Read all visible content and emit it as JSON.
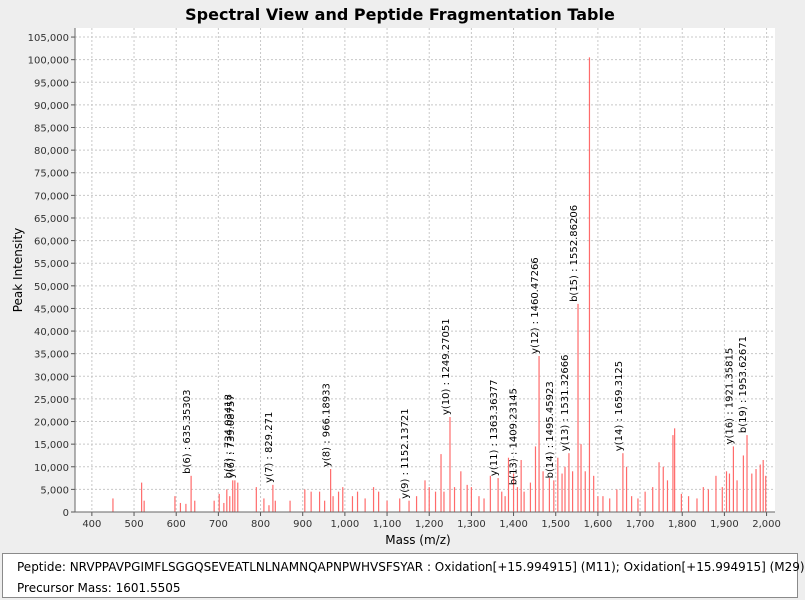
{
  "chart_data": {
    "type": "bar",
    "title": "Spectral View and Peptide Fragmentation Table",
    "xlabel": "Mass (m/z)",
    "ylabel": "Peak Intensity",
    "xlim": [
      360,
      2020
    ],
    "ylim": [
      0,
      107000
    ],
    "grid": true,
    "series_color": "#ff6b6b",
    "x_ticks": [
      400,
      500,
      600,
      700,
      800,
      900,
      1000,
      1100,
      1200,
      1300,
      1400,
      1500,
      1600,
      1700,
      1800,
      1900,
      2000
    ],
    "x_tick_labels": [
      "400",
      "500",
      "600",
      "700",
      "800",
      "900",
      "1,000",
      "1,100",
      "1,200",
      "1,300",
      "1,400",
      "1,500",
      "1,600",
      "1,700",
      "1,800",
      "1,900",
      "2,000"
    ],
    "y_ticks": [
      0,
      5000,
      10000,
      15000,
      20000,
      25000,
      30000,
      35000,
      40000,
      45000,
      50000,
      55000,
      60000,
      65000,
      70000,
      75000,
      80000,
      85000,
      90000,
      95000,
      100000,
      105000
    ],
    "y_tick_labels": [
      "0",
      "5,000",
      "10,000",
      "15,000",
      "20,000",
      "25,000",
      "30,000",
      "35,000",
      "40,000",
      "45,000",
      "50,000",
      "55,000",
      "60,000",
      "65,000",
      "70,000",
      "75,000",
      "80,000",
      "85,000",
      "90,000",
      "95,000",
      "100,000",
      "105,000"
    ],
    "peaks": [
      {
        "x": 450,
        "y": 3000
      },
      {
        "x": 518,
        "y": 6500
      },
      {
        "x": 524,
        "y": 2500
      },
      {
        "x": 597,
        "y": 3500
      },
      {
        "x": 610,
        "y": 2000
      },
      {
        "x": 623,
        "y": 1800
      },
      {
        "x": 635.35,
        "y": 8000
      },
      {
        "x": 644,
        "y": 2500
      },
      {
        "x": 690,
        "y": 2500
      },
      {
        "x": 702,
        "y": 4000
      },
      {
        "x": 713,
        "y": 2000
      },
      {
        "x": 720,
        "y": 5000
      },
      {
        "x": 727,
        "y": 3500
      },
      {
        "x": 734.03,
        "y": 7000
      },
      {
        "x": 739.08,
        "y": 7000
      },
      {
        "x": 746,
        "y": 6500
      },
      {
        "x": 790,
        "y": 5500
      },
      {
        "x": 808,
        "y": 3000
      },
      {
        "x": 820,
        "y": 1500
      },
      {
        "x": 829.27,
        "y": 6000
      },
      {
        "x": 835,
        "y": 2500
      },
      {
        "x": 870,
        "y": 2500
      },
      {
        "x": 905,
        "y": 5000
      },
      {
        "x": 920,
        "y": 4500
      },
      {
        "x": 940,
        "y": 4500
      },
      {
        "x": 952,
        "y": 2500
      },
      {
        "x": 966.19,
        "y": 9500
      },
      {
        "x": 972,
        "y": 3500
      },
      {
        "x": 985,
        "y": 4500
      },
      {
        "x": 995,
        "y": 5500
      },
      {
        "x": 1018,
        "y": 3500
      },
      {
        "x": 1030,
        "y": 4500
      },
      {
        "x": 1048,
        "y": 3000
      },
      {
        "x": 1068,
        "y": 5500
      },
      {
        "x": 1080,
        "y": 4500
      },
      {
        "x": 1100,
        "y": 2500
      },
      {
        "x": 1130,
        "y": 3000
      },
      {
        "x": 1152.14,
        "y": 2500
      },
      {
        "x": 1170,
        "y": 3500
      },
      {
        "x": 1190,
        "y": 7000
      },
      {
        "x": 1200,
        "y": 5500
      },
      {
        "x": 1215,
        "y": 4500
      },
      {
        "x": 1228,
        "y": 12800
      },
      {
        "x": 1235,
        "y": 4500
      },
      {
        "x": 1249.27,
        "y": 21000
      },
      {
        "x": 1260,
        "y": 5500
      },
      {
        "x": 1275,
        "y": 9000
      },
      {
        "x": 1290,
        "y": 6000
      },
      {
        "x": 1300,
        "y": 5500
      },
      {
        "x": 1318,
        "y": 3500
      },
      {
        "x": 1330,
        "y": 3000
      },
      {
        "x": 1345,
        "y": 8000
      },
      {
        "x": 1363.36,
        "y": 7500
      },
      {
        "x": 1372,
        "y": 4500
      },
      {
        "x": 1380,
        "y": 3500
      },
      {
        "x": 1388,
        "y": 12000
      },
      {
        "x": 1400,
        "y": 8500
      },
      {
        "x": 1409.23,
        "y": 5500
      },
      {
        "x": 1418,
        "y": 11500
      },
      {
        "x": 1425,
        "y": 4500
      },
      {
        "x": 1440,
        "y": 6500
      },
      {
        "x": 1452,
        "y": 14500
      },
      {
        "x": 1460.47,
        "y": 34500
      },
      {
        "x": 1470,
        "y": 9000
      },
      {
        "x": 1485,
        "y": 7500
      },
      {
        "x": 1495.46,
        "y": 7000
      },
      {
        "x": 1505,
        "y": 12000
      },
      {
        "x": 1515,
        "y": 8500
      },
      {
        "x": 1522,
        "y": 10000
      },
      {
        "x": 1531.33,
        "y": 13000
      },
      {
        "x": 1540,
        "y": 9000
      },
      {
        "x": 1552.86,
        "y": 46000
      },
      {
        "x": 1560,
        "y": 15000
      },
      {
        "x": 1570,
        "y": 9000
      },
      {
        "x": 1580,
        "y": 100500
      },
      {
        "x": 1590,
        "y": 8000
      },
      {
        "x": 1600,
        "y": 3500
      },
      {
        "x": 1612,
        "y": 3500
      },
      {
        "x": 1628,
        "y": 3000
      },
      {
        "x": 1645,
        "y": 5000
      },
      {
        "x": 1659.31,
        "y": 13000
      },
      {
        "x": 1668,
        "y": 10000
      },
      {
        "x": 1680,
        "y": 3500
      },
      {
        "x": 1695,
        "y": 3000
      },
      {
        "x": 1712,
        "y": 4500
      },
      {
        "x": 1730,
        "y": 5500
      },
      {
        "x": 1745,
        "y": 11000
      },
      {
        "x": 1755,
        "y": 10000
      },
      {
        "x": 1765,
        "y": 7000
      },
      {
        "x": 1778,
        "y": 17000
      },
      {
        "x": 1782,
        "y": 18500
      },
      {
        "x": 1798,
        "y": 4000
      },
      {
        "x": 1815,
        "y": 3500
      },
      {
        "x": 1835,
        "y": 3000
      },
      {
        "x": 1850,
        "y": 5500
      },
      {
        "x": 1862,
        "y": 5000
      },
      {
        "x": 1880,
        "y": 8000
      },
      {
        "x": 1895,
        "y": 5500
      },
      {
        "x": 1905,
        "y": 9000
      },
      {
        "x": 1912,
        "y": 8500
      },
      {
        "x": 1921.36,
        "y": 14500
      },
      {
        "x": 1930,
        "y": 7000
      },
      {
        "x": 1945,
        "y": 12500
      },
      {
        "x": 1953.63,
        "y": 17000
      },
      {
        "x": 1965,
        "y": 8500
      },
      {
        "x": 1975,
        "y": 9500
      },
      {
        "x": 1985,
        "y": 10500
      },
      {
        "x": 1992,
        "y": 11500
      },
      {
        "x": 1998,
        "y": 8000
      }
    ],
    "annotations": [
      {
        "x": 635.35,
        "y": 8000,
        "label": "b(6) : 635.35303"
      },
      {
        "x": 734.03,
        "y": 7000,
        "label": "b(7) : 734.03418"
      },
      {
        "x": 739.08,
        "y": 7000,
        "label": "y(6) : 739.08757"
      },
      {
        "x": 829.27,
        "y": 6000,
        "label": "y(7) : 829.271"
      },
      {
        "x": 966.19,
        "y": 9500,
        "label": "y(8) : 966.18933"
      },
      {
        "x": 1152.14,
        "y": 2500,
        "label": "y(9) : 1152.13721"
      },
      {
        "x": 1249.27,
        "y": 21000,
        "label": "y(10) : 1249.27051"
      },
      {
        "x": 1363.36,
        "y": 7500,
        "label": "y(11) : 1363.36377"
      },
      {
        "x": 1409.23,
        "y": 5500,
        "label": "b(13) : 1409.23145"
      },
      {
        "x": 1460.47,
        "y": 34500,
        "label": "y(12) : 1460.47266"
      },
      {
        "x": 1495.46,
        "y": 7000,
        "label": "b(14) : 1495.45923"
      },
      {
        "x": 1531.33,
        "y": 13000,
        "label": "y(13) : 1531.32666"
      },
      {
        "x": 1552.86,
        "y": 46000,
        "label": "b(15) : 1552.86206"
      },
      {
        "x": 1659.31,
        "y": 13000,
        "label": "y(14) : 1659.3125"
      },
      {
        "x": 1921.36,
        "y": 14500,
        "label": "y(16) : 1921.35815"
      },
      {
        "x": 1953.63,
        "y": 17000,
        "label": "b(19) : 1953.62671"
      }
    ]
  },
  "info": {
    "peptide": "Peptide: NRVPPAVPGIMFLSGGQSEVEATLNLNAMNQAPNPWHVSFSYAR : Oxidation[+15.994915] (M11); Oxidation[+15.994915] (M29)",
    "precursor": "Precursor Mass: 1601.5505"
  }
}
